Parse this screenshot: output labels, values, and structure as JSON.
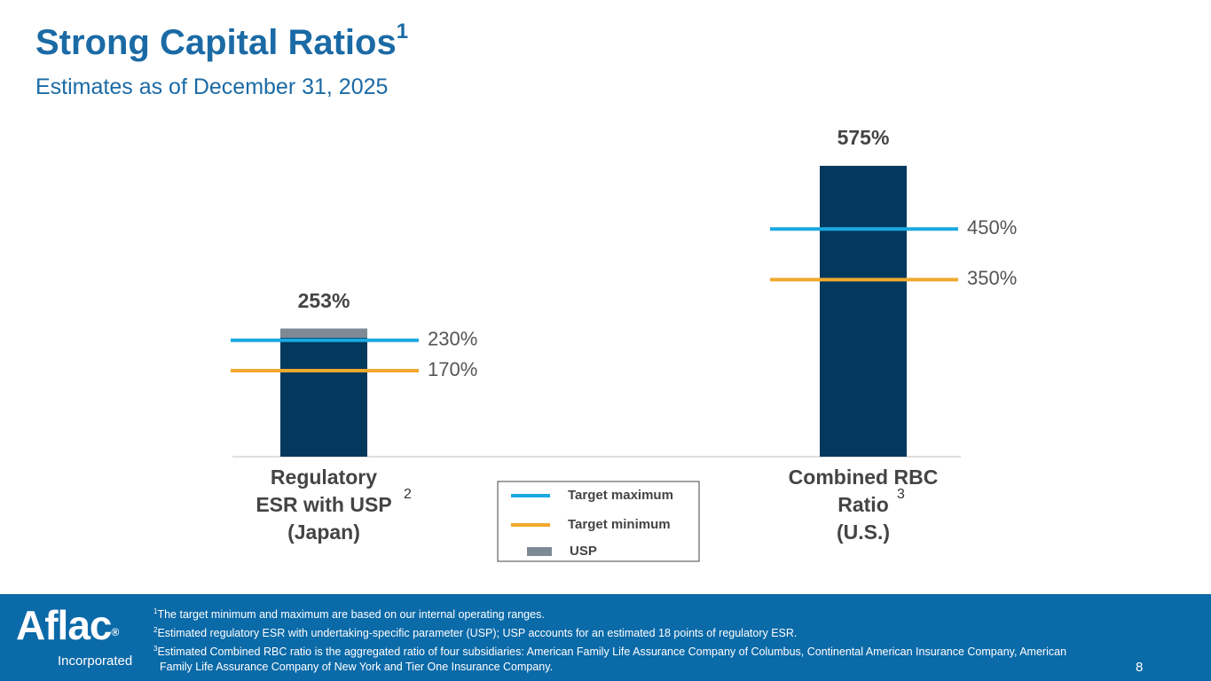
{
  "title": "Strong Capital Ratios",
  "title_note": "1",
  "subtitle": "Estimates as of December 31, 2025",
  "chart_data": {
    "type": "bar",
    "categories": [
      [
        "Regulatory",
        "ESR with USP",
        "(Japan)"
      ],
      [
        "Combined RBC",
        "Ratio",
        "(U.S.)"
      ]
    ],
    "category_notes": [
      "2",
      "3"
    ],
    "values": [
      253,
      575
    ],
    "value_labels": [
      "253%",
      "575%"
    ],
    "color": "#04395e",
    "stack": {
      "name": "USP",
      "color": "#7d8995",
      "values": [
        18,
        null
      ]
    },
    "lines": [
      {
        "name": "Target maximum",
        "color": "#1ba9e1",
        "values": [
          230,
          450
        ],
        "value_labels": [
          "230%",
          "450%"
        ]
      },
      {
        "name": "Target minimum",
        "color": "#f0a92e",
        "values": [
          170,
          350
        ],
        "value_labels": [
          "170%",
          "350%"
        ]
      }
    ]
  },
  "footnotes": [
    {
      "number": "1",
      "text": "The target minimum and maximum are based on our internal operating ranges."
    },
    {
      "number": "2",
      "text": "Estimated regulatory ESR with undertaking-specific parameter (USP); USP accounts for an estimated 18 points of regulatory ESR."
    },
    {
      "number": "3",
      "text": "Estimated Combined RBC ratio is the aggregated ratio of four subsidiaries: American Family Life Assurance Company of Columbus, Continental American Insurance Company, American Family Life Assurance Company of New York and Tier One Insurance Company."
    }
  ],
  "page_number": "8",
  "logo": {
    "name": "Aflac",
    "mark": "®",
    "tagline": "Incorporated"
  }
}
